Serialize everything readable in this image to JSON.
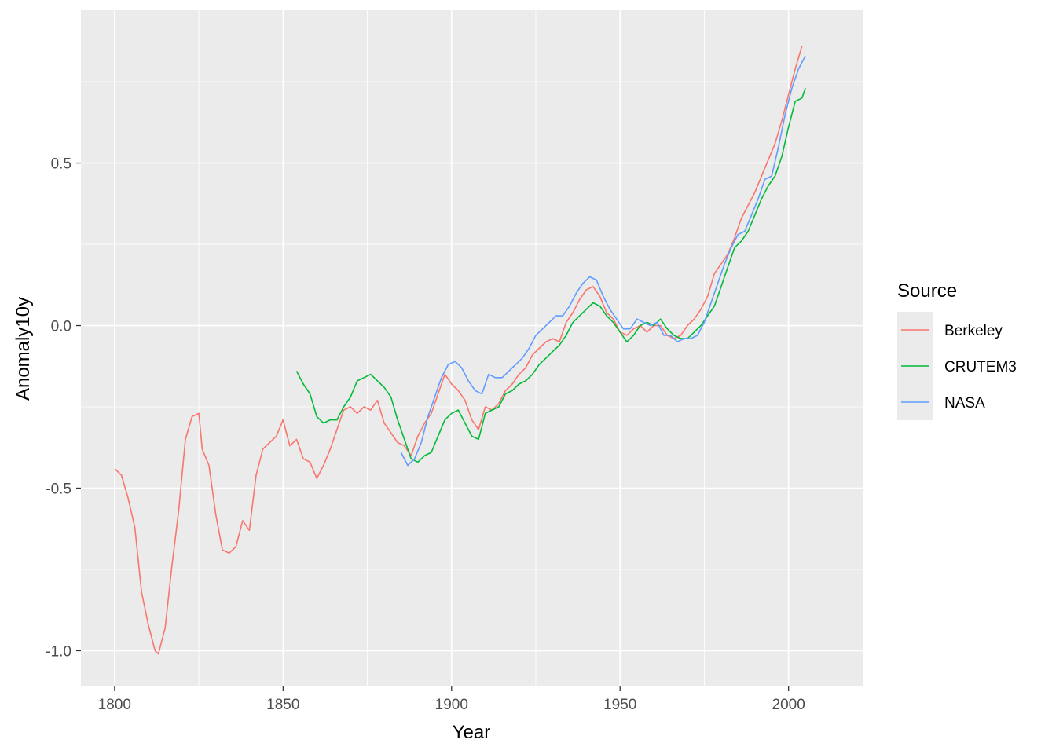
{
  "chart_data": {
    "type": "line",
    "xlabel": "Year",
    "ylabel": "Anomaly10y",
    "xlim": [
      1790,
      2022
    ],
    "ylim": [
      -1.11,
      0.97
    ],
    "x_ticks": [
      1800,
      1850,
      1900,
      1950,
      2000
    ],
    "x_tick_labels": [
      "1800",
      "1850",
      "1900",
      "1950",
      "2000"
    ],
    "y_ticks": [
      -1.0,
      -0.5,
      0.0,
      0.5
    ],
    "y_tick_labels": [
      "-1.0",
      "-0.5",
      "0.0",
      "0.5"
    ],
    "grid": true,
    "panel_background": "#ebebeb",
    "grid_color": "#ffffff",
    "legend": {
      "title": "Source",
      "placement": "right"
    },
    "series": [
      {
        "name": "Berkeley",
        "color": "#f8766d",
        "x": [
          1800,
          1802,
          1804,
          1806,
          1808,
          1810,
          1812,
          1813,
          1815,
          1817,
          1819,
          1821,
          1823,
          1825,
          1826,
          1828,
          1830,
          1832,
          1834,
          1836,
          1838,
          1840,
          1842,
          1844,
          1846,
          1848,
          1850,
          1852,
          1854,
          1856,
          1858,
          1860,
          1862,
          1864,
          1866,
          1868,
          1870,
          1872,
          1874,
          1876,
          1878,
          1880,
          1882,
          1884,
          1886,
          1888,
          1890,
          1892,
          1894,
          1896,
          1898,
          1900,
          1902,
          1904,
          1906,
          1908,
          1910,
          1912,
          1914,
          1916,
          1918,
          1920,
          1922,
          1924,
          1926,
          1928,
          1930,
          1932,
          1934,
          1936,
          1938,
          1940,
          1942,
          1944,
          1946,
          1948,
          1950,
          1952,
          1954,
          1956,
          1958,
          1960,
          1962,
          1964,
          1966,
          1968,
          1970,
          1972,
          1974,
          1976,
          1978,
          1980,
          1982,
          1984,
          1986,
          1988,
          1990,
          1992,
          1994,
          1996,
          1998,
          2000,
          2002,
          2004
        ],
        "y": [
          -0.44,
          -0.46,
          -0.53,
          -0.62,
          -0.82,
          -0.92,
          -1.0,
          -1.01,
          -0.93,
          -0.74,
          -0.57,
          -0.35,
          -0.28,
          -0.27,
          -0.38,
          -0.43,
          -0.58,
          -0.69,
          -0.7,
          -0.68,
          -0.6,
          -0.63,
          -0.46,
          -0.38,
          -0.36,
          -0.34,
          -0.29,
          -0.37,
          -0.35,
          -0.41,
          -0.42,
          -0.47,
          -0.43,
          -0.38,
          -0.32,
          -0.26,
          -0.25,
          -0.27,
          -0.25,
          -0.26,
          -0.23,
          -0.3,
          -0.33,
          -0.36,
          -0.37,
          -0.4,
          -0.34,
          -0.3,
          -0.27,
          -0.21,
          -0.15,
          -0.18,
          -0.2,
          -0.23,
          -0.29,
          -0.32,
          -0.25,
          -0.26,
          -0.24,
          -0.2,
          -0.18,
          -0.15,
          -0.13,
          -0.09,
          -0.07,
          -0.05,
          -0.04,
          -0.05,
          0.01,
          0.04,
          0.08,
          0.11,
          0.12,
          0.09,
          0.04,
          0.02,
          -0.02,
          -0.03,
          -0.01,
          0.0,
          -0.02,
          0.0,
          0.0,
          -0.03,
          -0.04,
          -0.03,
          0.0,
          0.02,
          0.05,
          0.09,
          0.16,
          0.19,
          0.22,
          0.27,
          0.33,
          0.37,
          0.41,
          0.46,
          0.51,
          0.56,
          0.63,
          0.71,
          0.79,
          0.86
        ]
      },
      {
        "name": "CRUTEM3",
        "color": "#00ba38",
        "x": [
          1854,
          1856,
          1858,
          1860,
          1862,
          1864,
          1866,
          1868,
          1870,
          1872,
          1874,
          1876,
          1878,
          1880,
          1882,
          1884,
          1886,
          1888,
          1890,
          1892,
          1894,
          1896,
          1898,
          1900,
          1902,
          1904,
          1906,
          1908,
          1910,
          1912,
          1914,
          1916,
          1918,
          1920,
          1922,
          1924,
          1926,
          1928,
          1930,
          1932,
          1934,
          1936,
          1938,
          1940,
          1942,
          1944,
          1946,
          1948,
          1950,
          1952,
          1954,
          1956,
          1958,
          1960,
          1962,
          1964,
          1966,
          1968,
          1970,
          1972,
          1974,
          1976,
          1978,
          1980,
          1982,
          1984,
          1986,
          1988,
          1990,
          1992,
          1994,
          1996,
          1998,
          2000,
          2002,
          2004,
          2005
        ],
        "y": [
          -0.14,
          -0.18,
          -0.21,
          -0.28,
          -0.3,
          -0.29,
          -0.29,
          -0.25,
          -0.22,
          -0.17,
          -0.16,
          -0.15,
          -0.17,
          -0.19,
          -0.22,
          -0.29,
          -0.35,
          -0.41,
          -0.42,
          -0.4,
          -0.39,
          -0.34,
          -0.29,
          -0.27,
          -0.26,
          -0.3,
          -0.34,
          -0.35,
          -0.27,
          -0.26,
          -0.25,
          -0.21,
          -0.2,
          -0.18,
          -0.17,
          -0.15,
          -0.12,
          -0.1,
          -0.08,
          -0.06,
          -0.03,
          0.01,
          0.03,
          0.05,
          0.07,
          0.06,
          0.03,
          0.01,
          -0.02,
          -0.05,
          -0.03,
          0.0,
          0.01,
          0.0,
          0.02,
          -0.01,
          -0.03,
          -0.04,
          -0.04,
          -0.02,
          0.0,
          0.03,
          0.06,
          0.12,
          0.18,
          0.24,
          0.26,
          0.29,
          0.34,
          0.39,
          0.43,
          0.46,
          0.52,
          0.61,
          0.69,
          0.7,
          0.73
        ]
      },
      {
        "name": "NASA",
        "color": "#619cff",
        "x": [
          1885,
          1887,
          1889,
          1891,
          1893,
          1895,
          1897,
          1899,
          1901,
          1903,
          1905,
          1907,
          1909,
          1911,
          1913,
          1915,
          1917,
          1919,
          1921,
          1923,
          1925,
          1927,
          1929,
          1931,
          1933,
          1935,
          1937,
          1939,
          1941,
          1943,
          1945,
          1947,
          1949,
          1951,
          1953,
          1955,
          1957,
          1959,
          1961,
          1963,
          1965,
          1967,
          1969,
          1971,
          1973,
          1975,
          1977,
          1979,
          1981,
          1983,
          1985,
          1987,
          1989,
          1991,
          1993,
          1995,
          1997,
          1999,
          2001,
          2003,
          2005
        ],
        "y": [
          -0.39,
          -0.43,
          -0.41,
          -0.36,
          -0.28,
          -0.22,
          -0.16,
          -0.12,
          -0.11,
          -0.13,
          -0.17,
          -0.2,
          -0.21,
          -0.15,
          -0.16,
          -0.16,
          -0.14,
          -0.12,
          -0.1,
          -0.07,
          -0.03,
          -0.01,
          0.01,
          0.03,
          0.03,
          0.06,
          0.1,
          0.13,
          0.15,
          0.14,
          0.09,
          0.05,
          0.02,
          -0.01,
          -0.01,
          0.02,
          0.01,
          0.0,
          0.01,
          -0.03,
          -0.03,
          -0.05,
          -0.04,
          -0.04,
          -0.03,
          0.01,
          0.07,
          0.13,
          0.19,
          0.24,
          0.28,
          0.29,
          0.34,
          0.39,
          0.45,
          0.46,
          0.55,
          0.65,
          0.73,
          0.79,
          0.83
        ]
      }
    ]
  }
}
